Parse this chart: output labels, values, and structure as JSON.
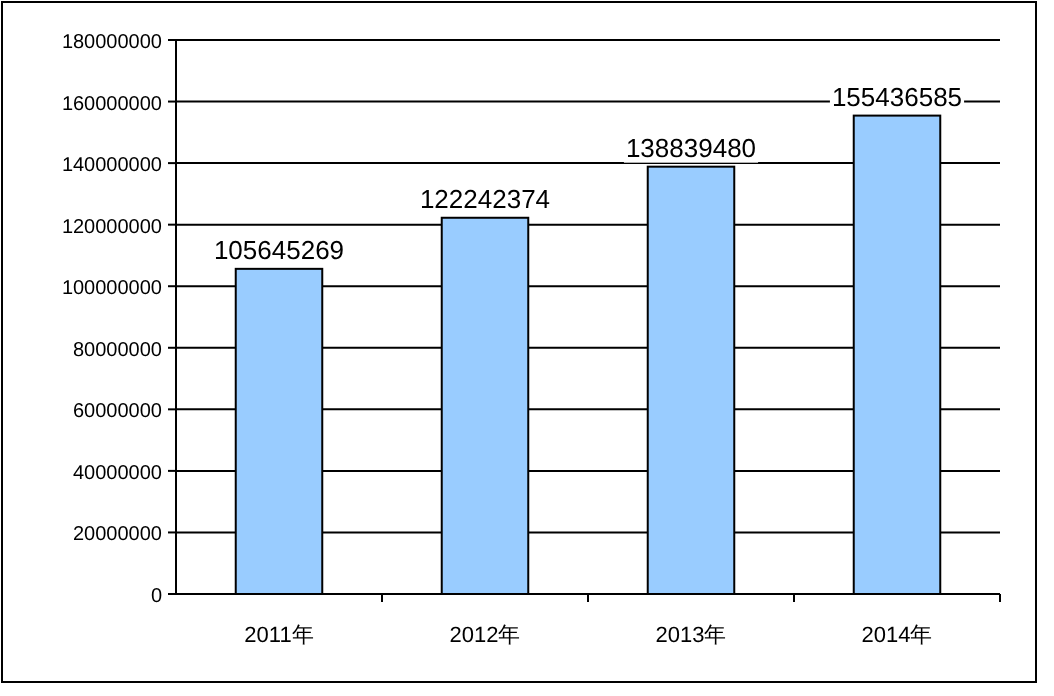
{
  "chart_data": {
    "type": "bar",
    "categories": [
      "2011年",
      "2012年",
      "2013年",
      "2014年"
    ],
    "values": [
      105645269,
      122242374,
      138839480,
      155436585
    ],
    "color": "#99ccff",
    "ylim": [
      0,
      180000000
    ],
    "yticks": [
      0,
      20000000,
      40000000,
      60000000,
      80000000,
      100000000,
      120000000,
      140000000,
      160000000,
      180000000
    ],
    "grid": "y",
    "data_labels": true
  }
}
